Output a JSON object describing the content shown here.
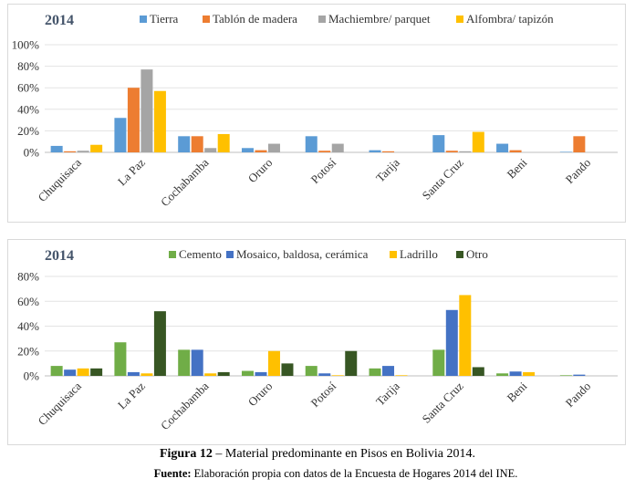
{
  "chart_data": [
    {
      "type": "bar",
      "title": "2014",
      "categories": [
        "Chuquisaca",
        "La Paz",
        "Cochabamba",
        "Oruro",
        "Potosí",
        "Tarija",
        "Santa Cruz",
        "Beni",
        "Pando"
      ],
      "y_ticks": [
        "0%",
        "20%",
        "40%",
        "60%",
        "80%",
        "100%"
      ],
      "ylim": [
        0,
        100
      ],
      "legend_position": "top",
      "grid": true,
      "series": [
        {
          "name": "Tierra",
          "color": "#5b9bd5",
          "values": [
            6,
            32,
            15,
            4,
            15,
            2,
            16,
            8,
            0.5
          ]
        },
        {
          "name": "Tablón de madera",
          "color": "#ed7d31",
          "values": [
            1,
            60,
            15,
            2,
            1.5,
            1,
            1.5,
            2,
            15
          ]
        },
        {
          "name": "Machiembre/ parquet",
          "color": "#a5a5a5",
          "values": [
            1.5,
            77,
            4,
            8,
            8,
            0,
            1,
            0,
            0
          ]
        },
        {
          "name": "Alfombra/ tapizón",
          "color": "#ffc000",
          "values": [
            7,
            57,
            17,
            0,
            0,
            0,
            19,
            0,
            0
          ]
        }
      ]
    },
    {
      "type": "bar",
      "title": "2014",
      "categories": [
        "Chuquisaca",
        "La Paz",
        "Cochabamba",
        "Oruro",
        "Potosí",
        "Tarija",
        "Santa Cruz",
        "Beni",
        "Pando"
      ],
      "y_ticks": [
        "0%",
        "20%",
        "40%",
        "60%",
        "80%"
      ],
      "ylim": [
        0,
        80
      ],
      "legend_position": "top",
      "grid": true,
      "series": [
        {
          "name": "Cemento",
          "color": "#70ad47",
          "values": [
            8,
            27,
            21,
            4,
            8,
            6,
            21,
            2,
            0.5
          ]
        },
        {
          "name": "Mosaico, baldosa, cerámica",
          "color": "#4472c4",
          "values": [
            5,
            3,
            21,
            3,
            2,
            8,
            53,
            3.5,
            1
          ]
        },
        {
          "name": "Ladrillo",
          "color": "#ffc000",
          "values": [
            6,
            2,
            2,
            20,
            0.5,
            0.5,
            65,
            3,
            0
          ]
        },
        {
          "name": "Otro",
          "color": "#375623",
          "values": [
            6,
            52,
            3,
            10,
            20,
            0,
            7,
            0,
            0
          ]
        }
      ]
    }
  ],
  "caption": {
    "figure_label": "Figura 12",
    "figure_text": " – Material predominante en Pisos en Bolivia 2014.",
    "source_label": "Fuente:",
    "source_text": " Elaboración propia con datos de la Encuesta de Hogares 2014 del INE."
  }
}
